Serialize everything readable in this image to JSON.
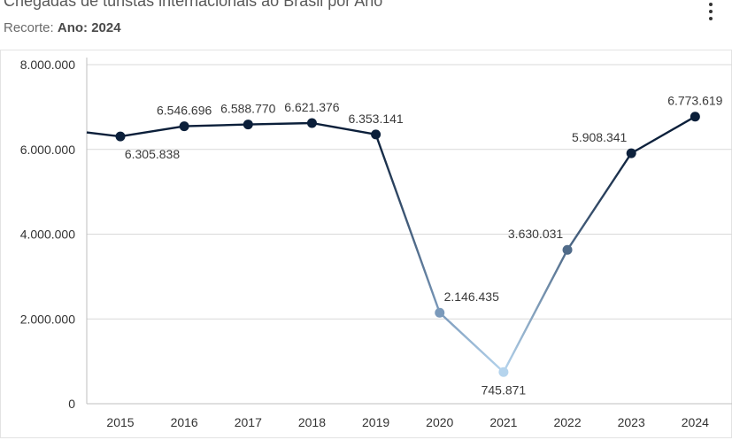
{
  "header": {
    "title": "Chegadas de turistas internacionais ao Brasil por Ano",
    "filter_label": "Recorte:",
    "filter_value": "Ano: 2024",
    "menu_icon": "more-vertical-icon"
  },
  "chart_data": {
    "type": "line",
    "title": "Chegadas de turistas internacionais ao Brasil por Ano",
    "xlabel": "",
    "ylabel": "",
    "categories": [
      "2015",
      "2016",
      "2017",
      "2018",
      "2019",
      "2020",
      "2021",
      "2022",
      "2023",
      "2024"
    ],
    "series": [
      {
        "values": [
          6305838,
          6546696,
          6588770,
          6621376,
          6353141,
          2146435,
          745871,
          3630031,
          5908341,
          6773619
        ]
      }
    ],
    "data_labels": [
      "6.305.838",
      "6.546.696",
      "6.588.770",
      "6.621.376",
      "6.353.141",
      "2.146.435",
      "745.871",
      "3.630.031",
      "5.908.341",
      "6.773.619"
    ],
    "y_ticks": [
      {
        "value": 0,
        "label": "0"
      },
      {
        "value": 2000000,
        "label": "2.000.000"
      },
      {
        "value": 4000000,
        "label": "4.000.000"
      },
      {
        "value": 6000000,
        "label": "6.000.000"
      },
      {
        "value": 8000000,
        "label": "8.000.000"
      }
    ],
    "ylim": [
      0,
      8000000
    ],
    "partial_value_before_2015": 6400000,
    "grid": true,
    "legend": "none",
    "colors": {
      "dark": "#0b1f3a",
      "mid": "#7f9fc0",
      "light": "#b7d6ef",
      "grid": "#d9d9d9",
      "axis": "#bfbfbf",
      "tick_text": "#333333",
      "label_text": "#3a3a3a"
    }
  }
}
